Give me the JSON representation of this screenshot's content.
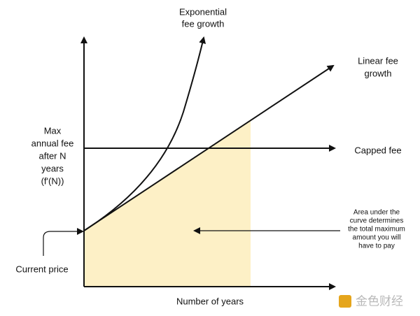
{
  "labels": {
    "exponential": [
      "Exponential",
      "fee growth"
    ],
    "linear": [
      "Linear fee",
      "growth"
    ],
    "y_axis": [
      "Max",
      "annual fee",
      "after N",
      "years",
      "(f'(N))"
    ],
    "capped": [
      "Capped fee"
    ],
    "area": [
      "Area under the",
      "curve determines",
      "the total maximum",
      "amount you will",
      "have to pay"
    ],
    "current_price": [
      "Current price"
    ],
    "x_axis": [
      "Number of years"
    ]
  },
  "watermark": "金色财经"
}
